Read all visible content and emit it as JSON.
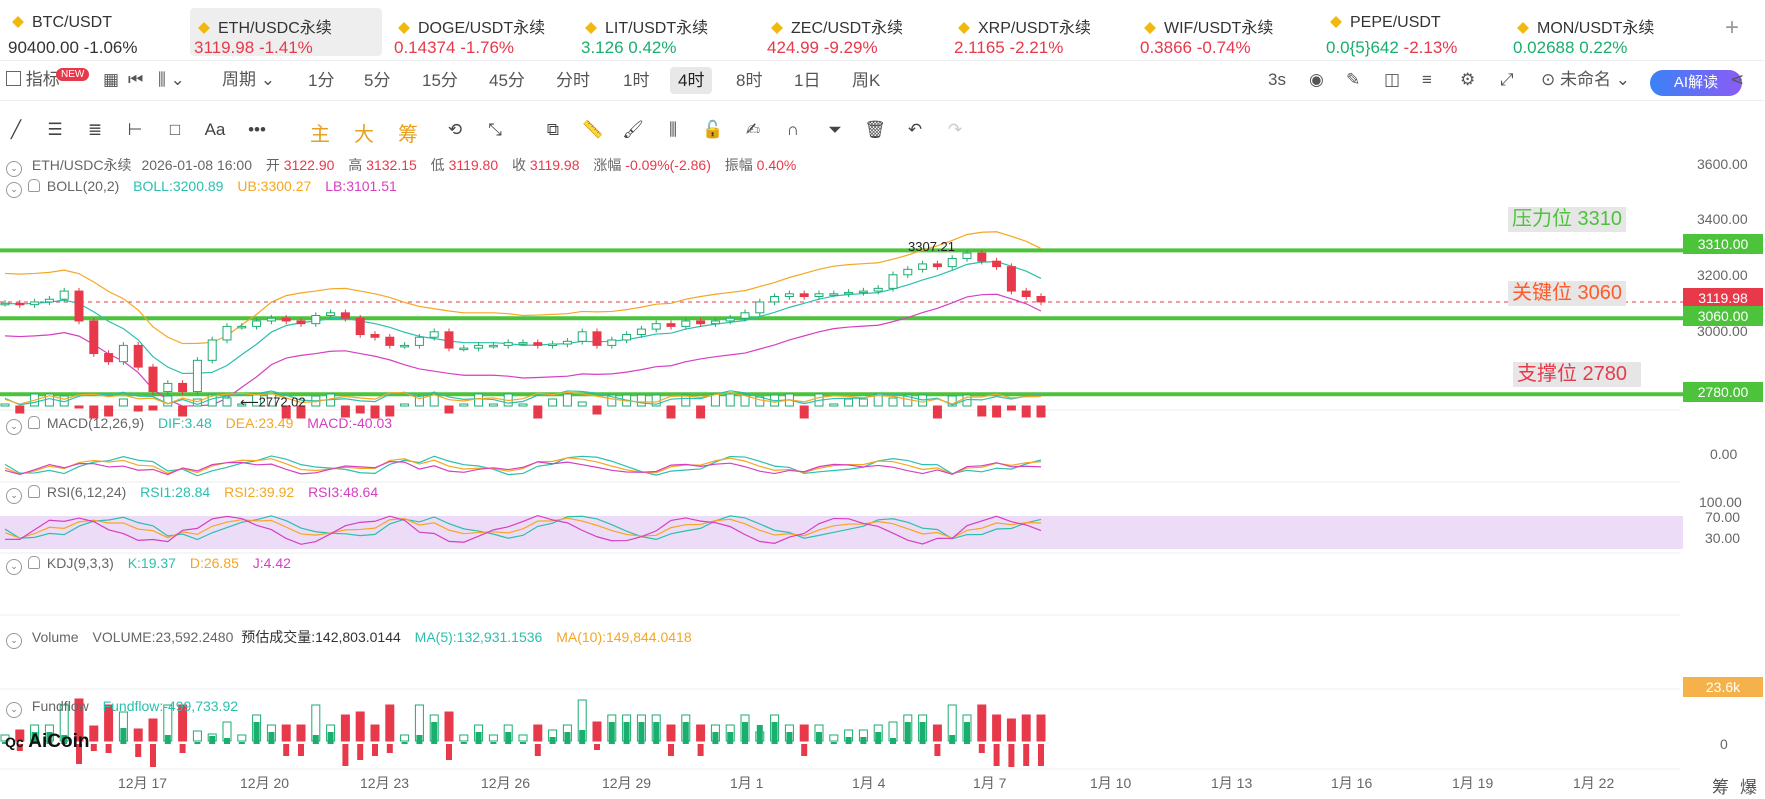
{
  "tickers": [
    {
      "symbol": "BTC/USDT",
      "price": "90400.00",
      "change": "-1.06%",
      "price_color": "neutral",
      "change_color": "neutral",
      "active": false
    },
    {
      "symbol": "ETH/USDC永续",
      "price": "3119.98",
      "change": "-1.41%",
      "price_color": "down",
      "change_color": "down",
      "active": true
    },
    {
      "symbol": "DOGE/USDT永续",
      "price": "0.14374",
      "change": "-1.76%",
      "price_color": "down",
      "change_color": "down",
      "active": false
    },
    {
      "symbol": "LIT/USDT永续",
      "price": "3.126",
      "change": "0.42%",
      "price_color": "up",
      "change_color": "up",
      "active": false
    },
    {
      "symbol": "ZEC/USDT永续",
      "price": "424.99",
      "change": "-9.29%",
      "price_color": "down",
      "change_color": "down",
      "active": false
    },
    {
      "symbol": "XRP/USDT永续",
      "price": "2.1165",
      "change": "-2.21%",
      "price_color": "down",
      "change_color": "down",
      "active": false
    },
    {
      "symbol": "WIF/USDT永续",
      "price": "0.3866",
      "change": "-0.74%",
      "price_color": "down",
      "change_color": "down",
      "active": false
    },
    {
      "symbol": "PEPE/USDT",
      "price": "0.0{5}642",
      "change": "-2.13%",
      "price_color": "up",
      "change_color": "down",
      "active": false
    },
    {
      "symbol": "MON/USDT永续",
      "price": "0.02688",
      "change": "0.22%",
      "price_color": "up",
      "change_color": "up",
      "active": false
    }
  ],
  "toolbar": {
    "indicators_label": "指标",
    "new_badge": "NEW",
    "period_label": "周期",
    "timeframes": [
      "1分",
      "5分",
      "15分",
      "45分",
      "分时",
      "1时",
      "4时",
      "8时",
      "1日",
      "周K"
    ],
    "active_timeframe": "4时",
    "refresh": "3s",
    "unnamed": "未命名",
    "ai_label": "AI解读"
  },
  "drawing_tools": {
    "main": "主",
    "big": "大",
    "chips": "筹"
  },
  "header": {
    "pair": "ETH/USDC永续",
    "datetime": "2026-01-08 16:00",
    "open_label": "开",
    "open": "3122.90",
    "high_label": "高",
    "high": "3132.15",
    "low_label": "低",
    "low": "3119.80",
    "close_label": "收",
    "close": "3119.98",
    "chg_label": "涨幅",
    "chg": "-0.09%(-2.86)",
    "amp_label": "振幅",
    "amp": "0.40%"
  },
  "indicators": {
    "boll": {
      "name": "BOLL(20,2)",
      "boll": "BOLL:3200.89",
      "ub": "UB:3300.27",
      "lb": "LB:3101.51"
    },
    "macd": {
      "name": "MACD(12,26,9)",
      "dif": "DIF:3.48",
      "dea": "DEA:23.49",
      "macd": "MACD:-40.03"
    },
    "rsi": {
      "name": "RSI(6,12,24)",
      "rsi1": "RSI1:28.84",
      "rsi2": "RSI2:39.92",
      "rsi3": "RSI3:48.64"
    },
    "kdj": {
      "name": "KDJ(9,3,3)",
      "k": "K:19.37",
      "d": "D:26.85",
      "j": "J:4.42"
    },
    "volume": {
      "name": "Volume",
      "vol": "VOLUME:23,592.2480",
      "est": "预估成交量:142,803.0144",
      "ma5": "MA(5):132,931.1536",
      "ma10": "MA(10):149,844.0418"
    },
    "fundflow": {
      "name": "Fundflow",
      "value": "Fundflow:-499,733.92"
    }
  },
  "annotations": {
    "resistance": "压力位 3310",
    "key": "关键位 3060",
    "support": "支撑位 2780",
    "high_mark": "3307.21",
    "low_mark": "2772.02"
  },
  "price_tags": {
    "p3310": "3310.00",
    "current": "3119.98",
    "p3060": "3060.00",
    "p2780": "2780.00",
    "vol": "23.6k"
  },
  "y_axis": {
    "main": [
      "3600.00",
      "3400.00",
      "3200.00",
      "3000.00"
    ],
    "macd": [
      "0.00"
    ],
    "rsi": [
      "100.00",
      "70.00",
      "30.00"
    ],
    "fundflow": [
      "0"
    ]
  },
  "x_axis": [
    "12月 17",
    "12月 20",
    "12月 23",
    "12月 26",
    "12月 29",
    "1月 1",
    "1月 4",
    "1月 7",
    "1月 10",
    "1月 13",
    "1月 16",
    "1月 19",
    "1月 22"
  ],
  "bottom_right": {
    "chips": "筹",
    "burst": "爆"
  },
  "logo": "AiCoin",
  "colors": {
    "up": "#1aae6f",
    "down": "#e8394b",
    "level": "#4cc33a",
    "boll_mid": "#2bbfae",
    "boll_ub": "#f5a623",
    "boll_lb": "#d63fc1"
  },
  "chart_data": {
    "type": "line",
    "ylim": [
      2700,
      3650
    ],
    "levels": [
      3310,
      3060,
      2780
    ],
    "current": 3119.98,
    "close_series": [
      3115,
      3110,
      3120,
      3130,
      3160,
      3050,
      2930,
      2900,
      2960,
      2880,
      2790,
      2820,
      2790,
      2905,
      2980,
      3030,
      3030,
      3050,
      3060,
      3050,
      3040,
      3070,
      3080,
      3060,
      3000,
      2990,
      2960,
      2960,
      2990,
      3010,
      2950,
      2950,
      2960,
      2960,
      2970,
      2970,
      2960,
      2965,
      2975,
      3010,
      2960,
      2980,
      3000,
      3020,
      3040,
      3030,
      3050,
      3040,
      3050,
      3060,
      3080,
      3120,
      3140,
      3150,
      3140,
      3150,
      3150,
      3155,
      3160,
      3170,
      3220,
      3240,
      3260,
      3250,
      3280,
      3300,
      3270,
      3250,
      3160,
      3140,
      3120
    ]
  }
}
